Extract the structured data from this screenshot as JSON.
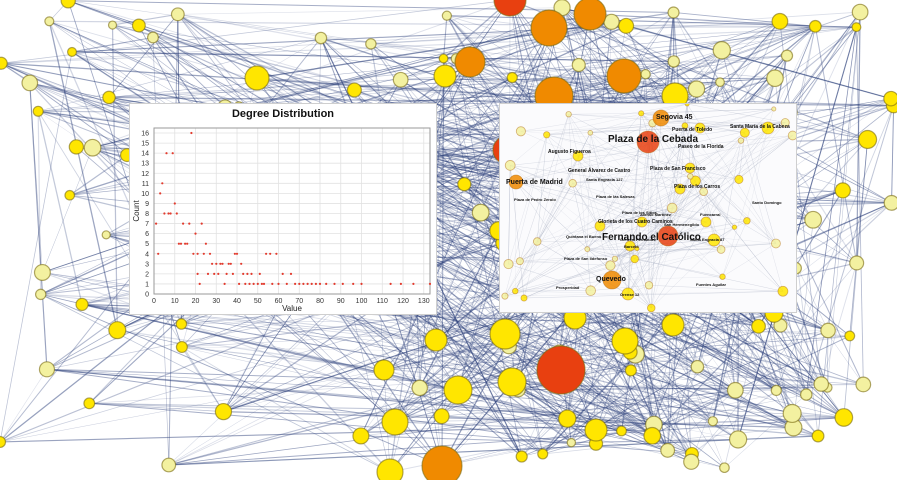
{
  "colors": {
    "edge": "#2b3f7a",
    "node_yellow": "#ffe600",
    "node_orange": "#f08a00",
    "node_red": "#e84010",
    "node_pale": "#f3f1a0",
    "point": "#e23b2e"
  },
  "chart_data": {
    "type": "scatter",
    "title": "Degree Distribution",
    "xlabel": "Value",
    "ylabel": "Count",
    "xlim": [
      0,
      133
    ],
    "ylim": [
      0,
      16.5
    ],
    "xticks": [
      0,
      10,
      20,
      30,
      40,
      50,
      60,
      70,
      80,
      90,
      100,
      110,
      120,
      130
    ],
    "yticks": [
      0,
      1,
      2,
      3,
      4,
      5,
      6,
      7,
      8,
      9,
      10,
      11,
      12,
      13,
      14,
      15,
      16
    ],
    "grid": true,
    "legend": "none",
    "points": [
      [
        1,
        7
      ],
      [
        2,
        4
      ],
      [
        3,
        10
      ],
      [
        4,
        11
      ],
      [
        5,
        8
      ],
      [
        6,
        14
      ],
      [
        7,
        8
      ],
      [
        8,
        8
      ],
      [
        9,
        14
      ],
      [
        10,
        9
      ],
      [
        11,
        8
      ],
      [
        12,
        5
      ],
      [
        13,
        5
      ],
      [
        14,
        7
      ],
      [
        15,
        5
      ],
      [
        16,
        5
      ],
      [
        17,
        7
      ],
      [
        18,
        16
      ],
      [
        19,
        4
      ],
      [
        20,
        6
      ],
      [
        21,
        2
      ],
      [
        21,
        4
      ],
      [
        22,
        1
      ],
      [
        23,
        7
      ],
      [
        24,
        4
      ],
      [
        25,
        5
      ],
      [
        26,
        2
      ],
      [
        27,
        4
      ],
      [
        28,
        3
      ],
      [
        29,
        2
      ],
      [
        30,
        3
      ],
      [
        31,
        2
      ],
      [
        32,
        3
      ],
      [
        33,
        3
      ],
      [
        34,
        1
      ],
      [
        35,
        2
      ],
      [
        36,
        3
      ],
      [
        37,
        3
      ],
      [
        38,
        2
      ],
      [
        39,
        4
      ],
      [
        40,
        4
      ],
      [
        41,
        1
      ],
      [
        42,
        3
      ],
      [
        43,
        2
      ],
      [
        44,
        1
      ],
      [
        45,
        2
      ],
      [
        46,
        1
      ],
      [
        47,
        2
      ],
      [
        48,
        1
      ],
      [
        50,
        1
      ],
      [
        51,
        2
      ],
      [
        52,
        1
      ],
      [
        53,
        1
      ],
      [
        54,
        4
      ],
      [
        56,
        4
      ],
      [
        57,
        1
      ],
      [
        59,
        4
      ],
      [
        60,
        1
      ],
      [
        62,
        2
      ],
      [
        64,
        1
      ],
      [
        66,
        2
      ],
      [
        68,
        1
      ],
      [
        70,
        1
      ],
      [
        72,
        1
      ],
      [
        74,
        1
      ],
      [
        76,
        1
      ],
      [
        78,
        1
      ],
      [
        80,
        1
      ],
      [
        83,
        1
      ],
      [
        87,
        1
      ],
      [
        91,
        1
      ],
      [
        96,
        1
      ],
      [
        100,
        1
      ],
      [
        114,
        1
      ],
      [
        119,
        1
      ],
      [
        125,
        1
      ],
      [
        133,
        1
      ]
    ]
  },
  "map": {
    "labels": [
      {
        "text": "Plaza de la Cebada",
        "size": "big"
      },
      {
        "text": "Fernando el Católico",
        "size": "big"
      },
      {
        "text": "Segovia 45",
        "size": "mid"
      },
      {
        "text": "Puerta de Toledo",
        "size": "small"
      },
      {
        "text": "Santa María de la Cabeza",
        "size": "small"
      },
      {
        "text": "Paseo de la Florida",
        "size": "small"
      },
      {
        "text": "Augusto Figueroa",
        "size": "small"
      },
      {
        "text": "General Álvarez de Castro",
        "size": "small"
      },
      {
        "text": "Plaza de San Francisco",
        "size": "small"
      },
      {
        "text": "Puerta de Madrid",
        "size": "mid"
      },
      {
        "text": "Plaza de los Carros",
        "size": "small"
      },
      {
        "text": "Plaza de Pedro Zerolo",
        "size": "tiny"
      },
      {
        "text": "Plaza de las Salesas",
        "size": "tiny"
      },
      {
        "text": "Plaza de los Sitios",
        "size": "tiny"
      },
      {
        "text": "Alonso Martínez",
        "size": "tiny"
      },
      {
        "text": "Glorieta de los Cuatro Caminos",
        "size": "small"
      },
      {
        "text": "Fuencarral",
        "size": "tiny"
      },
      {
        "text": "San Hermenegildo",
        "size": "tiny"
      },
      {
        "text": "General Fernández",
        "size": "tiny"
      },
      {
        "text": "Barceló",
        "size": "tiny"
      },
      {
        "text": "Santa Engracia 87",
        "size": "tiny"
      },
      {
        "text": "Plaza de San Ildefonso",
        "size": "tiny"
      },
      {
        "text": "Quevedo",
        "size": "mid"
      },
      {
        "text": "Prosperidad",
        "size": "tiny"
      },
      {
        "text": "Orense 12",
        "size": "tiny"
      },
      {
        "text": "Santa Engracia 127",
        "size": "tiny"
      },
      {
        "text": "Santo Domingo",
        "size": "tiny"
      },
      {
        "text": "Quintana el Bueno",
        "size": "tiny"
      },
      {
        "text": "Fuentes Aguilar",
        "size": "tiny"
      }
    ]
  }
}
